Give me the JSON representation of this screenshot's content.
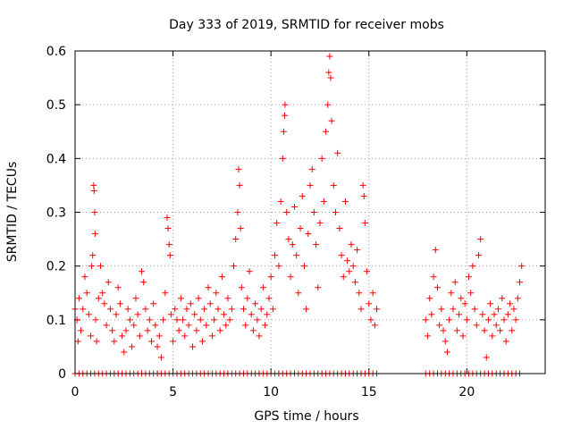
{
  "chart_data": {
    "type": "scatter",
    "title": "Day 333 of 2019, SRMTID for receiver mobs",
    "xlabel": "GPS time / hours",
    "ylabel": "SRMTID / TECUs",
    "xlim": [
      0,
      24
    ],
    "ylim": [
      0,
      0.6
    ],
    "xticks": [
      0,
      5,
      10,
      15,
      20
    ],
    "yticks": [
      0,
      0.1,
      0.2,
      0.3,
      0.4,
      0.5,
      0.6
    ],
    "xtick_labels": [
      "0",
      "5",
      "10",
      "15",
      "20"
    ],
    "ytick_labels": [
      "0",
      "0.1",
      "0.2",
      "0.3",
      "0.4",
      "0.5",
      "0.6"
    ],
    "grid": true,
    "marker": "+",
    "color": "#ff0000",
    "series": [
      {
        "name": "SRMTID",
        "points": [
          [
            0.0,
            0.12
          ],
          [
            0.1,
            0.1
          ],
          [
            0.15,
            0.06
          ],
          [
            0.2,
            0.14
          ],
          [
            0.3,
            0.08
          ],
          [
            0.4,
            0.12
          ],
          [
            0.5,
            0.18
          ],
          [
            0.6,
            0.15
          ],
          [
            0.7,
            0.11
          ],
          [
            0.8,
            0.07
          ],
          [
            0.85,
            0.2
          ],
          [
            0.9,
            0.22
          ],
          [
            0.95,
            0.35
          ],
          [
            0.97,
            0.34
          ],
          [
            1.0,
            0.3
          ],
          [
            1.02,
            0.26
          ],
          [
            1.05,
            0.1
          ],
          [
            1.1,
            0.06
          ],
          [
            1.2,
            0.14
          ],
          [
            1.3,
            0.2
          ],
          [
            1.4,
            0.15
          ],
          [
            1.5,
            0.13
          ],
          [
            1.6,
            0.09
          ],
          [
            1.7,
            0.17
          ],
          [
            1.8,
            0.12
          ],
          [
            1.9,
            0.08
          ],
          [
            2.0,
            0.06
          ],
          [
            2.1,
            0.11
          ],
          [
            2.2,
            0.16
          ],
          [
            2.3,
            0.13
          ],
          [
            2.4,
            0.07
          ],
          [
            2.5,
            0.04
          ],
          [
            2.6,
            0.08
          ],
          [
            2.7,
            0.12
          ],
          [
            2.8,
            0.1
          ],
          [
            2.9,
            0.05
          ],
          [
            3.0,
            0.09
          ],
          [
            3.1,
            0.14
          ],
          [
            3.2,
            0.11
          ],
          [
            3.3,
            0.07
          ],
          [
            3.4,
            0.19
          ],
          [
            3.5,
            0.17
          ],
          [
            3.6,
            0.12
          ],
          [
            3.7,
            0.08
          ],
          [
            3.8,
            0.1
          ],
          [
            3.9,
            0.06
          ],
          [
            4.0,
            0.13
          ],
          [
            4.1,
            0.09
          ],
          [
            4.2,
            0.05
          ],
          [
            4.3,
            0.07
          ],
          [
            4.4,
            0.03
          ],
          [
            4.5,
            0.1
          ],
          [
            4.6,
            0.15
          ],
          [
            4.7,
            0.29
          ],
          [
            4.75,
            0.27
          ],
          [
            4.8,
            0.24
          ],
          [
            4.85,
            0.22
          ],
          [
            4.9,
            0.11
          ],
          [
            5.0,
            0.06
          ],
          [
            5.1,
            0.12
          ],
          [
            5.2,
            0.1
          ],
          [
            5.3,
            0.08
          ],
          [
            5.4,
            0.14
          ],
          [
            5.5,
            0.1
          ],
          [
            5.6,
            0.07
          ],
          [
            5.7,
            0.12
          ],
          [
            5.8,
            0.09
          ],
          [
            5.9,
            0.13
          ],
          [
            6.0,
            0.05
          ],
          [
            6.1,
            0.11
          ],
          [
            6.2,
            0.08
          ],
          [
            6.3,
            0.14
          ],
          [
            6.4,
            0.1
          ],
          [
            6.5,
            0.06
          ],
          [
            6.6,
            0.12
          ],
          [
            6.7,
            0.09
          ],
          [
            6.8,
            0.16
          ],
          [
            6.9,
            0.13
          ],
          [
            7.0,
            0.07
          ],
          [
            7.1,
            0.1
          ],
          [
            7.2,
            0.15
          ],
          [
            7.3,
            0.12
          ],
          [
            7.4,
            0.08
          ],
          [
            7.5,
            0.18
          ],
          [
            7.6,
            0.11
          ],
          [
            7.7,
            0.09
          ],
          [
            7.8,
            0.14
          ],
          [
            7.9,
            0.1
          ],
          [
            8.0,
            0.12
          ],
          [
            8.1,
            0.2
          ],
          [
            8.2,
            0.25
          ],
          [
            8.3,
            0.3
          ],
          [
            8.35,
            0.38
          ],
          [
            8.4,
            0.35
          ],
          [
            8.45,
            0.27
          ],
          [
            8.5,
            0.16
          ],
          [
            8.6,
            0.12
          ],
          [
            8.7,
            0.09
          ],
          [
            8.8,
            0.14
          ],
          [
            8.9,
            0.19
          ],
          [
            9.0,
            0.11
          ],
          [
            9.1,
            0.08
          ],
          [
            9.2,
            0.13
          ],
          [
            9.3,
            0.1
          ],
          [
            9.4,
            0.07
          ],
          [
            9.5,
            0.12
          ],
          [
            9.6,
            0.16
          ],
          [
            9.7,
            0.09
          ],
          [
            9.8,
            0.11
          ],
          [
            9.9,
            0.14
          ],
          [
            10.0,
            0.18
          ],
          [
            10.1,
            0.12
          ],
          [
            10.2,
            0.22
          ],
          [
            10.3,
            0.28
          ],
          [
            10.4,
            0.2
          ],
          [
            10.5,
            0.32
          ],
          [
            10.6,
            0.4
          ],
          [
            10.65,
            0.45
          ],
          [
            10.7,
            0.48
          ],
          [
            10.72,
            0.5
          ],
          [
            10.8,
            0.3
          ],
          [
            10.9,
            0.25
          ],
          [
            11.0,
            0.18
          ],
          [
            11.1,
            0.24
          ],
          [
            11.2,
            0.31
          ],
          [
            11.3,
            0.22
          ],
          [
            11.4,
            0.15
          ],
          [
            11.5,
            0.27
          ],
          [
            11.6,
            0.33
          ],
          [
            11.7,
            0.2
          ],
          [
            11.8,
            0.12
          ],
          [
            11.9,
            0.26
          ],
          [
            12.0,
            0.35
          ],
          [
            12.1,
            0.38
          ],
          [
            12.2,
            0.3
          ],
          [
            12.3,
            0.24
          ],
          [
            12.4,
            0.16
          ],
          [
            12.5,
            0.28
          ],
          [
            12.6,
            0.4
          ],
          [
            12.7,
            0.32
          ],
          [
            12.8,
            0.45
          ],
          [
            12.9,
            0.5
          ],
          [
            12.95,
            0.56
          ],
          [
            13.0,
            0.59
          ],
          [
            13.05,
            0.55
          ],
          [
            13.1,
            0.47
          ],
          [
            13.2,
            0.35
          ],
          [
            13.3,
            0.3
          ],
          [
            13.4,
            0.41
          ],
          [
            13.5,
            0.27
          ],
          [
            13.6,
            0.22
          ],
          [
            13.7,
            0.18
          ],
          [
            13.8,
            0.32
          ],
          [
            13.9,
            0.21
          ],
          [
            14.0,
            0.19
          ],
          [
            14.1,
            0.24
          ],
          [
            14.2,
            0.2
          ],
          [
            14.3,
            0.17
          ],
          [
            14.4,
            0.23
          ],
          [
            14.5,
            0.15
          ],
          [
            14.6,
            0.12
          ],
          [
            14.7,
            0.35
          ],
          [
            14.75,
            0.33
          ],
          [
            14.8,
            0.28
          ],
          [
            14.9,
            0.19
          ],
          [
            15.0,
            0.13
          ],
          [
            15.1,
            0.1
          ],
          [
            15.2,
            0.15
          ],
          [
            15.3,
            0.09
          ],
          [
            15.4,
            0.12
          ],
          [
            17.9,
            0.1
          ],
          [
            18.0,
            0.07
          ],
          [
            18.1,
            0.14
          ],
          [
            18.2,
            0.11
          ],
          [
            18.3,
            0.18
          ],
          [
            18.4,
            0.23
          ],
          [
            18.5,
            0.16
          ],
          [
            18.6,
            0.09
          ],
          [
            18.7,
            0.12
          ],
          [
            18.8,
            0.08
          ],
          [
            18.9,
            0.06
          ],
          [
            19.0,
            0.04
          ],
          [
            19.1,
            0.1
          ],
          [
            19.2,
            0.15
          ],
          [
            19.3,
            0.12
          ],
          [
            19.4,
            0.17
          ],
          [
            19.5,
            0.08
          ],
          [
            19.6,
            0.11
          ],
          [
            19.7,
            0.14
          ],
          [
            19.8,
            0.07
          ],
          [
            19.9,
            0.13
          ],
          [
            20.0,
            0.1
          ],
          [
            20.1,
            0.18
          ],
          [
            20.2,
            0.15
          ],
          [
            20.3,
            0.2
          ],
          [
            20.4,
            0.12
          ],
          [
            20.5,
            0.09
          ],
          [
            20.6,
            0.22
          ],
          [
            20.7,
            0.25
          ],
          [
            20.8,
            0.11
          ],
          [
            20.9,
            0.08
          ],
          [
            21.0,
            0.03
          ],
          [
            21.1,
            0.1
          ],
          [
            21.2,
            0.13
          ],
          [
            21.3,
            0.07
          ],
          [
            21.4,
            0.11
          ],
          [
            21.5,
            0.09
          ],
          [
            21.6,
            0.12
          ],
          [
            21.7,
            0.08
          ],
          [
            21.8,
            0.14
          ],
          [
            21.9,
            0.1
          ],
          [
            22.0,
            0.06
          ],
          [
            22.1,
            0.11
          ],
          [
            22.2,
            0.13
          ],
          [
            22.3,
            0.08
          ],
          [
            22.4,
            0.12
          ],
          [
            22.5,
            0.1
          ],
          [
            22.6,
            0.14
          ],
          [
            22.7,
            0.17
          ],
          [
            22.8,
            0.2
          ]
        ]
      },
      {
        "name": "zero",
        "x_ranges": [
          [
            0,
            15.4
          ],
          [
            17.9,
            22.8
          ]
        ],
        "step": 0.2,
        "y": 0
      }
    ]
  }
}
